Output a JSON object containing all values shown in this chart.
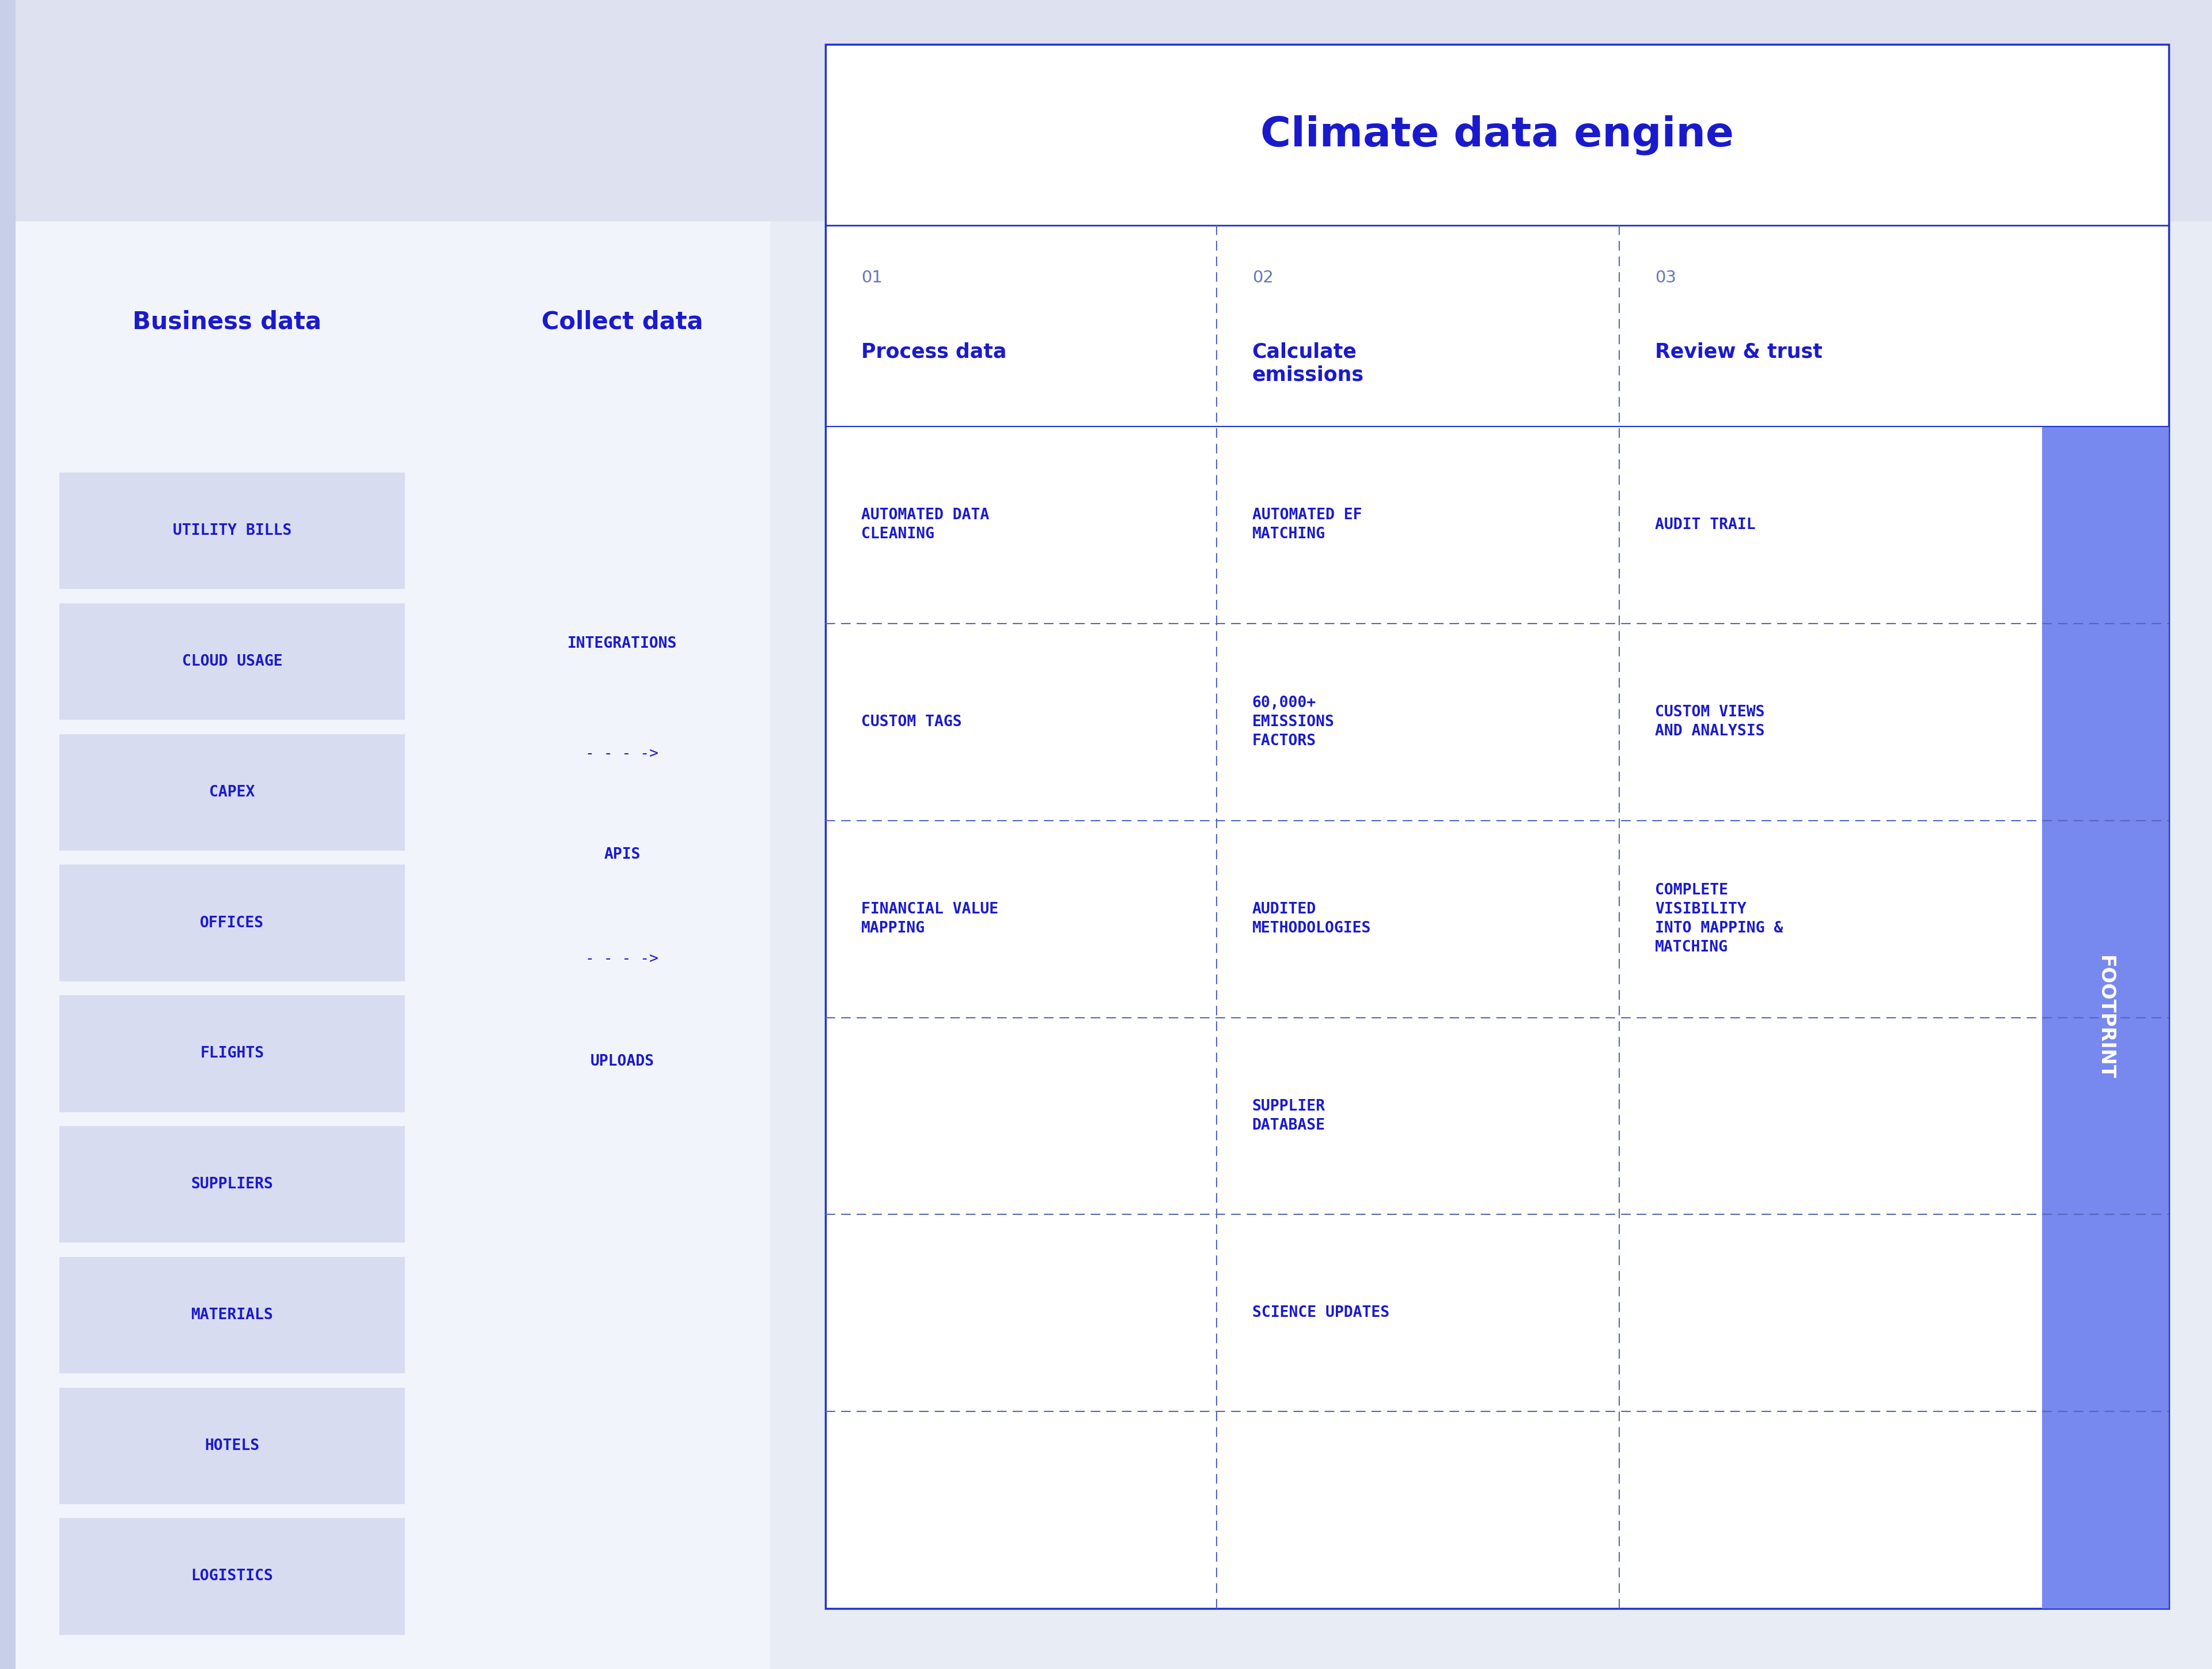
{
  "bg_color": "#e8ecf5",
  "left_panel_color": "#f2f4fb",
  "white": "#ffffff",
  "blue_dark": "#1a1acc",
  "blue_border": "#2233cc",
  "blue_dashed": "#5566bb",
  "blue_num": "#6677bb",
  "blue_box": "#d8dcf0",
  "sidebar_blue": "#7788ee",
  "business_data_label": "Business data",
  "collect_data_label": "Collect data",
  "business_items": [
    "UTILITY BILLS",
    "CLOUD USAGE",
    "CAPEX",
    "OFFICES",
    "FLIGHTS",
    "SUPPLIERS",
    "MATERIALS",
    "HOTELS",
    "LOGISTICS"
  ],
  "collect_items": [
    {
      "text": "INTEGRATIONS",
      "arrow": false
    },
    {
      "text": "- - - ->",
      "arrow": true
    },
    {
      "text": "APIS",
      "arrow": false
    },
    {
      "text": "- - - ->",
      "arrow": true
    },
    {
      "text": "UPLOADS",
      "arrow": false
    }
  ],
  "engine_title": "Climate data engine",
  "col_headers": [
    {
      "num": "01",
      "title": "Process data"
    },
    {
      "num": "02",
      "title": "Calculate\nemissions"
    },
    {
      "text": "03",
      "title": "Review & trust"
    }
  ],
  "col1_items": [
    {
      "text": "AUTOMATED DATA\nCLEANING",
      "row": 0
    },
    {
      "text": "CUSTOM TAGS",
      "row": 1
    },
    {
      "text": "FINANCIAL VALUE\nMAPPING",
      "row": 2
    }
  ],
  "col2_items": [
    {
      "text": "AUTOMATED EF\nMATCHING",
      "row": 0
    },
    {
      "text": "60,000+\nEMISSIONS\nFACTORS",
      "row": 1
    },
    {
      "text": "AUDITED\nMETHODOLOGIES",
      "row": 2
    },
    {
      "text": "SUPPLIER\nDATABASE",
      "row": 3
    },
    {
      "text": "SCIENCE UPDATES",
      "row": 4
    }
  ],
  "col3_items": [
    {
      "text": "AUDIT TRAIL",
      "row": 0
    },
    {
      "text": "CUSTOM VIEWS\nAND ANALYSIS",
      "row": 1
    },
    {
      "text": "COMPLETE\nVISIBILITY\nINTO MAPPING &\nMATCHING",
      "row": 2
    }
  ],
  "footprint_label": "FOOTPRINT"
}
